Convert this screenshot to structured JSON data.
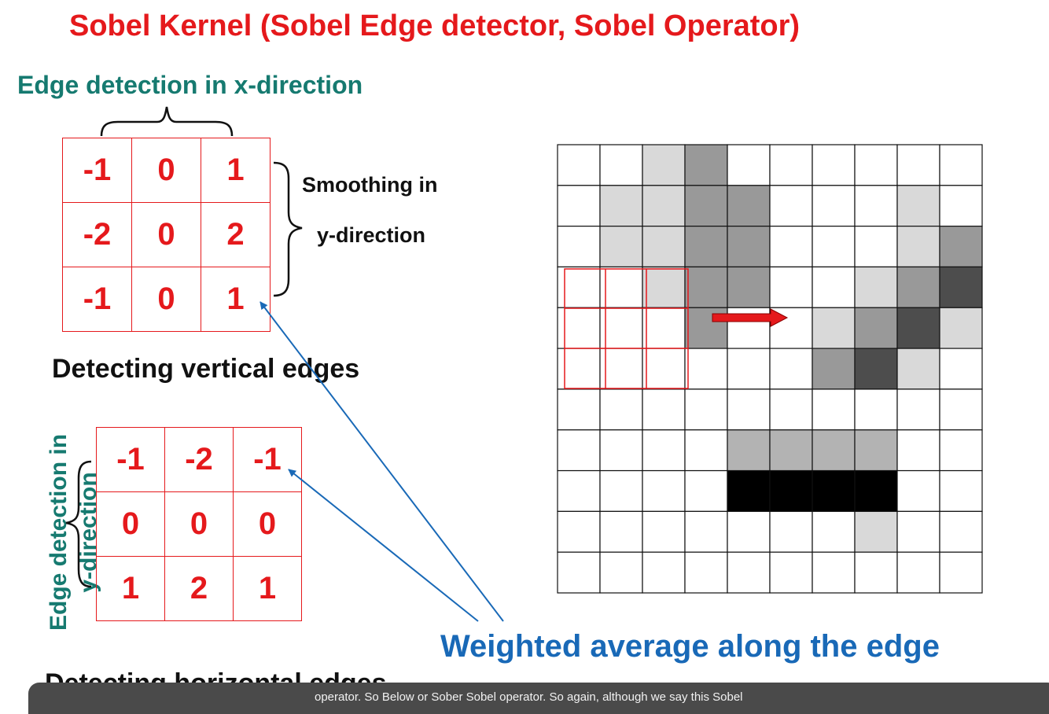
{
  "title": "Sobel Kernel (Sobel Edge detector, Sobel Operator)",
  "x_heading": "Edge detection in x-direction",
  "y_heading_line1": "Edge detection in",
  "y_heading_line2": "y-direction",
  "smoothing_line1": "Smoothing in",
  "smoothing_line2": "y-direction",
  "kernel_x": [
    [
      "-1",
      "0",
      "1"
    ],
    [
      "-2",
      "0",
      "2"
    ],
    [
      "-1",
      "0",
      "1"
    ]
  ],
  "kernel_y": [
    [
      "-1",
      "-2",
      "-1"
    ],
    [
      "0",
      "0",
      "0"
    ],
    [
      "1",
      "2",
      "1"
    ]
  ],
  "vertical_caption": "Detecting vertical edges",
  "horizontal_caption": "Detecting horizontal edges",
  "weighted_caption": "Weighted average along the edge",
  "subtitle": "operator. So Below or Sober Sobel operator. So again, although we say this Sobel",
  "colors": {
    "kernel_red": "#e5191c",
    "teal": "#167a70",
    "blue": "#1969b7",
    "arrow_red": "#e5191c"
  },
  "image_grid": {
    "rows": 11,
    "cols": 10,
    "palette": {
      "0": "#ffffff",
      "1": "#d9d9d9",
      "2": "#b3b3b3",
      "3": "#999999",
      "4": "#4d4d4d",
      "5": "#000000"
    },
    "cells": [
      [
        0,
        0,
        1,
        3,
        0,
        0,
        0,
        0,
        0,
        0
      ],
      [
        0,
        1,
        1,
        3,
        3,
        0,
        0,
        0,
        1,
        0
      ],
      [
        0,
        1,
        1,
        3,
        3,
        0,
        0,
        0,
        1,
        3
      ],
      [
        0,
        0,
        1,
        3,
        3,
        0,
        0,
        1,
        3,
        4
      ],
      [
        0,
        0,
        0,
        3,
        0,
        0,
        1,
        3,
        4,
        1
      ],
      [
        0,
        0,
        0,
        0,
        0,
        0,
        3,
        4,
        1,
        0
      ],
      [
        0,
        0,
        0,
        0,
        0,
        0,
        0,
        0,
        0,
        0
      ],
      [
        0,
        0,
        0,
        0,
        2,
        2,
        2,
        2,
        0,
        0
      ],
      [
        0,
        0,
        0,
        0,
        5,
        5,
        5,
        5,
        0,
        0
      ],
      [
        0,
        0,
        0,
        0,
        0,
        0,
        0,
        1,
        0,
        0
      ],
      [
        0,
        0,
        0,
        0,
        0,
        0,
        0,
        0,
        0,
        0
      ]
    ]
  }
}
